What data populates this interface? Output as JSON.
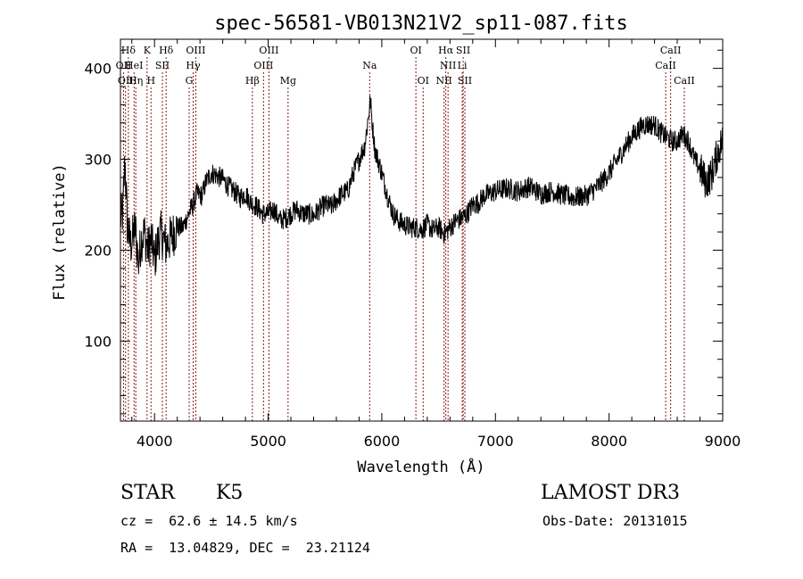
{
  "chart_data": {
    "type": "line",
    "title": "spec-56581-VB013N21V2_sp11-087.fits",
    "xlabel": "Wavelength (Å)",
    "ylabel": "Flux (relative)",
    "xlim": [
      3700,
      9000
    ],
    "ylim": [
      12,
      432
    ],
    "x_ticks": [
      4000,
      5000,
      6000,
      7000,
      8000,
      9000
    ],
    "y_ticks": [
      100,
      200,
      300,
      400
    ],
    "line_color": "#000000",
    "marker_color": "#8b1a1a",
    "spectrum_anchors": [
      [
        3700,
        235
      ],
      [
        3720,
        240
      ],
      [
        3740,
        300
      ],
      [
        3760,
        228
      ],
      [
        3790,
        205
      ],
      [
        3830,
        225
      ],
      [
        3860,
        185
      ],
      [
        3880,
        210
      ],
      [
        3910,
        220
      ],
      [
        3940,
        200
      ],
      [
        3970,
        212
      ],
      [
        4000,
        190
      ],
      [
        4050,
        220
      ],
      [
        4100,
        205
      ],
      [
        4150,
        215
      ],
      [
        4200,
        225
      ],
      [
        4250,
        225
      ],
      [
        4300,
        240
      ],
      [
        4340,
        250
      ],
      [
        4370,
        262
      ],
      [
        4420,
        260
      ],
      [
        4450,
        275
      ],
      [
        4500,
        285
      ],
      [
        4550,
        282
      ],
      [
        4600,
        278
      ],
      [
        4650,
        270
      ],
      [
        4700,
        265
      ],
      [
        4750,
        258
      ],
      [
        4800,
        262
      ],
      [
        4850,
        252
      ],
      [
        4900,
        248
      ],
      [
        4950,
        240
      ],
      [
        5000,
        240
      ],
      [
        5050,
        245
      ],
      [
        5100,
        233
      ],
      [
        5150,
        235
      ],
      [
        5200,
        240
      ],
      [
        5250,
        245
      ],
      [
        5300,
        240
      ],
      [
        5350,
        240
      ],
      [
        5400,
        238
      ],
      [
        5450,
        245
      ],
      [
        5500,
        250
      ],
      [
        5560,
        248
      ],
      [
        5600,
        255
      ],
      [
        5650,
        262
      ],
      [
        5700,
        265
      ],
      [
        5750,
        285
      ],
      [
        5800,
        300
      ],
      [
        5850,
        315
      ],
      [
        5880,
        345
      ],
      [
        5900,
        365
      ],
      [
        5915,
        340
      ],
      [
        5940,
        310
      ],
      [
        5970,
        298
      ],
      [
        6000,
        285
      ],
      [
        6050,
        260
      ],
      [
        6100,
        240
      ],
      [
        6150,
        232
      ],
      [
        6200,
        228
      ],
      [
        6250,
        225
      ],
      [
        6300,
        225
      ],
      [
        6350,
        223
      ],
      [
        6400,
        228
      ],
      [
        6450,
        222
      ],
      [
        6500,
        225
      ],
      [
        6550,
        218
      ],
      [
        6600,
        225
      ],
      [
        6650,
        232
      ],
      [
        6700,
        235
      ],
      [
        6750,
        240
      ],
      [
        6800,
        250
      ],
      [
        6850,
        252
      ],
      [
        6900,
        260
      ],
      [
        6950,
        262
      ],
      [
        7000,
        265
      ],
      [
        7100,
        268
      ],
      [
        7200,
        265
      ],
      [
        7300,
        270
      ],
      [
        7400,
        262
      ],
      [
        7500,
        265
      ],
      [
        7600,
        260
      ],
      [
        7700,
        258
      ],
      [
        7800,
        260
      ],
      [
        7900,
        270
      ],
      [
        8000,
        285
      ],
      [
        8100,
        305
      ],
      [
        8200,
        325
      ],
      [
        8300,
        338
      ],
      [
        8400,
        338
      ],
      [
        8450,
        330
      ],
      [
        8500,
        325
      ],
      [
        8550,
        320
      ],
      [
        8600,
        320
      ],
      [
        8650,
        328
      ],
      [
        8700,
        320
      ],
      [
        8750,
        300
      ],
      [
        8800,
        290
      ],
      [
        8850,
        275
      ],
      [
        8900,
        282
      ],
      [
        8950,
        305
      ],
      [
        9000,
        322
      ]
    ],
    "spectrum_spikes": [
      [
        3735,
        330
      ],
      [
        3748,
        205
      ],
      [
        3800,
        165
      ],
      [
        3840,
        260
      ],
      [
        3885,
        150
      ],
      [
        3905,
        245
      ],
      [
        4318,
        245
      ],
      [
        4930,
        205
      ],
      [
        5010,
        195
      ],
      [
        5570,
        170
      ],
      [
        6005,
        330
      ],
      [
        6280,
        200
      ],
      [
        6580,
        202
      ],
      [
        6700,
        260
      ],
      [
        8570,
        338
      ],
      [
        8665,
        348
      ],
      [
        8905,
        260
      ],
      [
        8950,
        340
      ],
      [
        8985,
        338
      ]
    ],
    "spectral_lines": [
      {
        "label": "Hδ",
        "wavelength": 3770,
        "row": 1
      },
      {
        "label": "OII",
        "wavelength": 3727,
        "row": 2
      },
      {
        "label": "OII",
        "wavelength": 3745,
        "row": 3
      },
      {
        "label": "HeI",
        "wavelength": 3820,
        "row": 2
      },
      {
        "label": "Hη",
        "wavelength": 3835,
        "row": 3
      },
      {
        "label": "K",
        "wavelength": 3934,
        "row": 1
      },
      {
        "label": "SII",
        "wavelength": 4069,
        "row": 2
      },
      {
        "label": "H",
        "wavelength": 3969,
        "row": 3
      },
      {
        "label": "Hδ",
        "wavelength": 4102,
        "row": 1
      },
      {
        "label": "OIII",
        "wavelength": 4363,
        "row": 1
      },
      {
        "label": "Hγ",
        "wavelength": 4340,
        "row": 2
      },
      {
        "label": "G",
        "wavelength": 4305,
        "row": 3
      },
      {
        "label": "Hβ",
        "wavelength": 4861,
        "row": 3
      },
      {
        "label": "OIII",
        "wavelength": 5007,
        "row": 1
      },
      {
        "label": "OIII",
        "wavelength": 4959,
        "row": 2
      },
      {
        "label": "Mg",
        "wavelength": 5175,
        "row": 3
      },
      {
        "label": "Na",
        "wavelength": 5893,
        "row": 2
      },
      {
        "label": "OI",
        "wavelength": 6300,
        "row": 1
      },
      {
        "label": "OI",
        "wavelength": 6364,
        "row": 3
      },
      {
        "label": "Hα",
        "wavelength": 6563,
        "row": 1
      },
      {
        "label": "NII",
        "wavelength": 6583,
        "row": 2
      },
      {
        "label": "NII",
        "wavelength": 6548,
        "row": 3
      },
      {
        "label": "SII",
        "wavelength": 6716,
        "row": 1
      },
      {
        "label": "Li",
        "wavelength": 6708,
        "row": 2
      },
      {
        "label": "SII",
        "wavelength": 6731,
        "row": 3
      },
      {
        "label": "CaII",
        "wavelength": 8542,
        "row": 1
      },
      {
        "label": "CaII",
        "wavelength": 8498,
        "row": 2
      },
      {
        "label": "CaII",
        "wavelength": 8662,
        "row": 3
      }
    ]
  },
  "info": {
    "object_class": "STAR",
    "subclass": "K5",
    "survey": "LAMOST DR3",
    "redshift_line": "cz =  62.6 ± 14.5 km/s",
    "obs_date": "Obs-Date: 20131015",
    "coords": "RA =  13.04829, DEC =  23.21124"
  }
}
